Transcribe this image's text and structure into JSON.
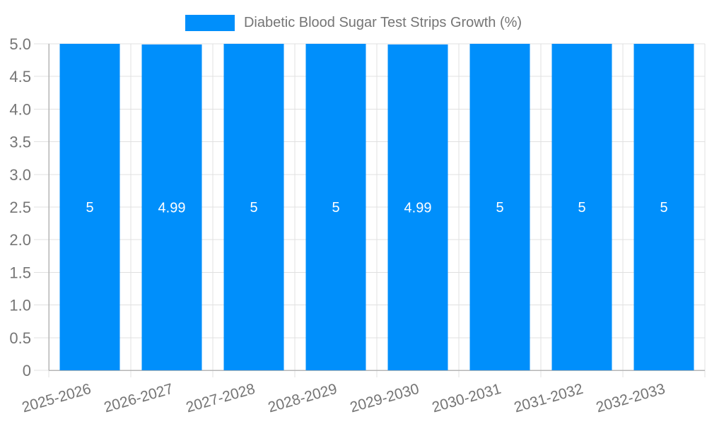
{
  "chart_data": {
    "type": "bar",
    "title": "Diabetic Blood Sugar Test Strips Growth (%)",
    "legend": {
      "label": "Diabetic Blood Sugar Test Strips Growth (%)",
      "position": "top",
      "marker": "blue-rect"
    },
    "categories": [
      "2025-2026",
      "2026-2027",
      "2027-2028",
      "2028-2029",
      "2029-2030",
      "2030-2031",
      "2031-2032",
      "2032-2033"
    ],
    "values": [
      5,
      4.99,
      5,
      5,
      4.99,
      5,
      5,
      5
    ],
    "value_labels": [
      "5",
      "4.99",
      "5",
      "5",
      "4.99",
      "5",
      "5",
      "5"
    ],
    "xlabel": "",
    "ylabel": "",
    "ylim": [
      0,
      5
    ],
    "y_ticks": [
      {
        "v": 5,
        "label": "5.0"
      },
      {
        "v": 4.5,
        "label": "4.5"
      },
      {
        "v": 4,
        "label": "4.0"
      },
      {
        "v": 3.5,
        "label": "3.5"
      },
      {
        "v": 3,
        "label": "3.0"
      },
      {
        "v": 2.5,
        "label": "2.5"
      },
      {
        "v": 2,
        "label": "2.0"
      },
      {
        "v": 1.5,
        "label": "1.5"
      },
      {
        "v": 1,
        "label": "1.0"
      },
      {
        "v": 0.5,
        "label": "0.5"
      },
      {
        "v": 0,
        "label": "0"
      }
    ],
    "grid": true,
    "x_label_rotation_deg": -16,
    "colors": {
      "bar": "#008FFB",
      "grid": "#e0e0e0",
      "axis": "#b6b6b6",
      "axis_label": "#757575",
      "value_label": "#ffffff",
      "legend_text": "#757575"
    }
  }
}
